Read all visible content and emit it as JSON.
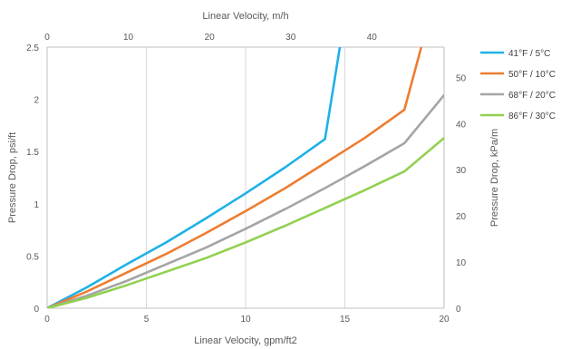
{
  "chart_data": {
    "type": "line",
    "x_bottom": {
      "label": "Linear Velocity, gpm/ft2",
      "range": [
        0,
        20
      ],
      "ticks": [
        0,
        5,
        10,
        15,
        20
      ]
    },
    "x_top": {
      "label": "Linear Velocity, m/h",
      "range": [
        0,
        48.9
      ],
      "ticks": [
        0,
        10,
        20,
        30,
        40
      ]
    },
    "y_left": {
      "label": "Pressure Drop, psi/ft",
      "range": [
        0,
        2.5
      ],
      "ticks": [
        0,
        0.5,
        1,
        1.5,
        2,
        2.5
      ],
      "tick_labels": [
        "0",
        "0.5",
        "1",
        "1.5",
        "2",
        "2.5"
      ]
    },
    "y_right": {
      "label": "Pressure Drop, kPa/m",
      "range": [
        0,
        56.55
      ],
      "ticks": [
        0,
        10,
        20,
        30,
        40,
        50
      ]
    },
    "grid": "vertical",
    "legend_position": "right",
    "series": [
      {
        "name": "41°F / 5°C",
        "color": "#1FB1E6",
        "x": [
          0,
          2,
          4,
          6,
          8,
          10,
          12,
          14,
          14.75
        ],
        "y": [
          0,
          0.2,
          0.42,
          0.63,
          0.86,
          1.1,
          1.35,
          1.62,
          2.5
        ]
      },
      {
        "name": "50°F / 10°C",
        "color": "#ED7D31",
        "x": [
          0,
          2,
          4,
          6,
          8,
          10,
          12,
          14,
          16,
          18,
          18.85
        ],
        "y": [
          0,
          0.16,
          0.34,
          0.52,
          0.72,
          0.93,
          1.15,
          1.39,
          1.63,
          1.9,
          2.5
        ]
      },
      {
        "name": "68°F / 20°C",
        "color": "#A5A5A5",
        "x": [
          0,
          2,
          4,
          6,
          8,
          10,
          12,
          14,
          16,
          18,
          20
        ],
        "y": [
          0,
          0.12,
          0.26,
          0.42,
          0.58,
          0.76,
          0.95,
          1.15,
          1.36,
          1.58,
          2.04
        ]
      },
      {
        "name": "86°F / 30°C",
        "color": "#92D050",
        "x": [
          0,
          2,
          4,
          6,
          8,
          10,
          12,
          14,
          16,
          18,
          20
        ],
        "y": [
          0,
          0.1,
          0.22,
          0.35,
          0.48,
          0.63,
          0.79,
          0.96,
          1.13,
          1.31,
          1.63
        ]
      }
    ]
  }
}
